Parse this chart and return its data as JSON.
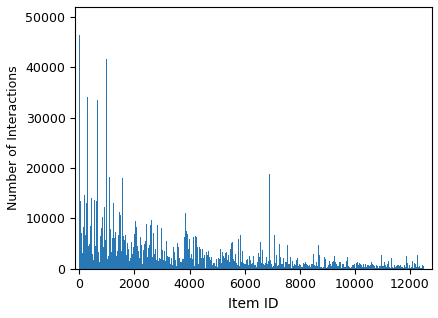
{
  "title": "",
  "xlabel": "Item ID",
  "ylabel": "Number of Interactions",
  "xlim": [
    -150,
    12800
  ],
  "ylim": [
    0,
    52000
  ],
  "bar_color": "#2878b5",
  "yticks": [
    0,
    10000,
    20000,
    30000,
    40000,
    50000
  ],
  "xticks": [
    0,
    2000,
    4000,
    6000,
    8000,
    10000,
    12000
  ],
  "n_items": 12500,
  "seed": 7
}
